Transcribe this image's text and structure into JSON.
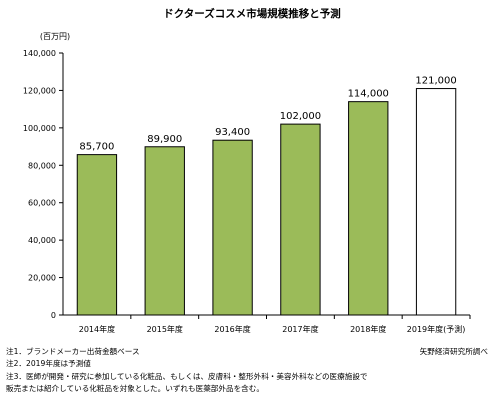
{
  "chart_data": {
    "type": "bar",
    "title": "ドクターズコスメ市場規模推移と予測",
    "unit_label": "(百万円)",
    "categories": [
      "2014年度",
      "2015年度",
      "2016年度",
      "2017年度",
      "2018年度",
      "2019年度(予測)"
    ],
    "values": [
      85700,
      89900,
      93400,
      102000,
      114000,
      121000
    ],
    "value_labels": [
      "85,700",
      "89,900",
      "93,400",
      "102,000",
      "114,000",
      "121,000"
    ],
    "forecast": [
      false,
      false,
      false,
      false,
      false,
      true
    ],
    "ylim": [
      0,
      140000
    ],
    "yticks": [
      0,
      20000,
      40000,
      60000,
      80000,
      100000,
      120000,
      140000
    ],
    "ytick_labels": [
      "0",
      "20,000",
      "40,000",
      "60,000",
      "80,000",
      "100,000",
      "120,000",
      "140,000"
    ],
    "grid": false,
    "colors": {
      "actual": "#9bbb59",
      "forecast": "#ffffff",
      "border": "#000000"
    }
  },
  "notes": {
    "note1": "注1．ブランドメーカー出荷金額ベース",
    "note2": "注2．2019年度は予測値",
    "note3": "注3．医師が開発・研究に参加している化粧品、もしくは、皮膚科・整形外科・美容外科などの医療施設で",
    "note4": "販売または紹介している化粧品を対象とした。いずれも医薬部外品を含む。",
    "source": "矢野経済研究所調べ"
  }
}
